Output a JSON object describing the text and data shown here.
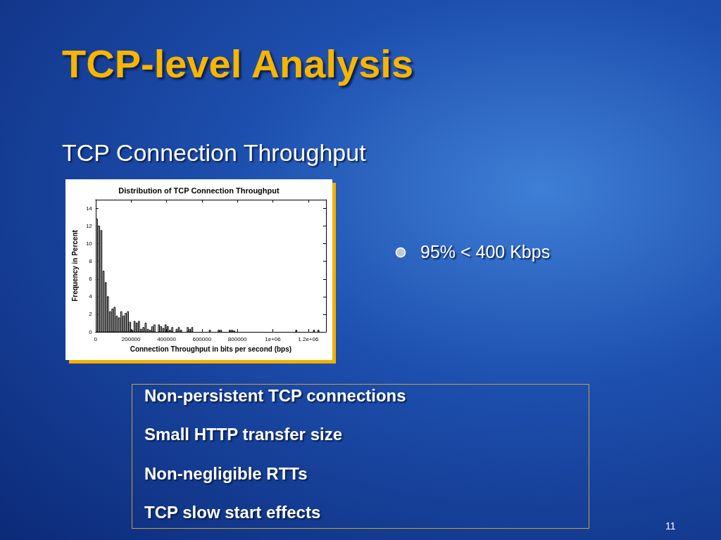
{
  "chart_data": {
    "type": "histogram",
    "title": "TCP-level Analysis",
    "subtitle": "TCP Connection Throughput",
    "xlabel": "Connection Throughput in bits per second (bps)",
    "ylabel": "Frequency in Percent",
    "annotations": [
      "Distribution of TCP Connection Throughput",
      "95% < 400 Kbps",
      "Non-persistent TCP connections",
      "Small HTTP transfer size",
      "Non-negligible RTTs",
      "TCP slow start effects",
      "11"
    ],
    "bins": [
      0,
      12500,
      25000,
      37500,
      50000,
      62500,
      75000,
      87500,
      100000,
      112500,
      125000,
      137500,
      150000,
      162500,
      175000,
      187500,
      200000,
      212500,
      225000,
      237500,
      250000,
      262500,
      275000,
      287500,
      300000,
      312500,
      325000,
      337500,
      350000,
      362500,
      375000,
      387500,
      400000,
      412500,
      425000,
      437500,
      450000,
      462500,
      475000,
      487500,
      500000,
      512500,
      525000,
      537500,
      550000,
      562500,
      575000,
      587500,
      600000,
      612500,
      625000,
      637500,
      650000,
      662500,
      675000,
      687500,
      700000,
      712500,
      725000,
      737500,
      750000,
      762500,
      775000,
      787500,
      800000,
      812500,
      825000,
      837500,
      850000,
      862500,
      875000,
      887500,
      900000,
      912500,
      925000,
      937500,
      950000,
      962500,
      975000,
      987500,
      1000000,
      1012500,
      1025000,
      1037500,
      1050000,
      1062500,
      1075000,
      1087500,
      1100000,
      1112500,
      1125000,
      1137500,
      1150000,
      1162500,
      1175000,
      1187500,
      1200000,
      1212500,
      1225000,
      1237500,
      1250000,
      1262500,
      1275000,
      1287500,
      1300000
    ],
    "values": [
      12.8,
      12.0,
      11.5,
      6.9,
      5.6,
      4.0,
      2.3,
      2.6,
      2.8,
      1.8,
      1.6,
      2.3,
      1.8,
      2.1,
      2.3,
      1.1,
      0.2,
      1.2,
      1.0,
      1.2,
      0.3,
      0.5,
      1.0,
      0.3,
      0.2,
      0.6,
      0.8,
      0,
      0.8,
      0.6,
      0.4,
      0.8,
      0.6,
      0.2,
      0.5,
      0,
      0.3,
      0.5,
      0.2,
      0,
      0,
      0.5,
      0.3,
      0.5,
      0,
      0,
      0,
      0,
      0,
      0,
      0,
      0.2,
      0,
      0,
      0,
      0.2,
      0.2,
      0,
      0,
      0,
      0.2,
      0.2,
      0.1,
      0,
      0,
      0,
      0,
      0,
      0,
      0,
      0,
      0,
      0,
      0,
      0,
      0,
      0,
      0,
      0,
      0,
      0,
      0,
      0,
      0,
      0,
      0,
      0,
      0,
      0,
      0,
      0.2,
      0,
      0,
      0,
      0,
      0,
      0,
      0,
      0.2,
      0,
      0.2,
      0,
      0,
      0
    ],
    "color": "#ffffff",
    "xlim": [
      0,
      1300000
    ],
    "xticks": [
      0,
      200000,
      400000,
      600000,
      800000,
      {
        "value": 1000000,
        "label": "1e+06"
      },
      {
        "value": 1200000,
        "label": "1.2e+06"
      }
    ],
    "ylim": [
      0,
      15
    ],
    "yticks": [
      0,
      2,
      4,
      6,
      8,
      10,
      12,
      14
    ],
    "grid": false
  }
}
